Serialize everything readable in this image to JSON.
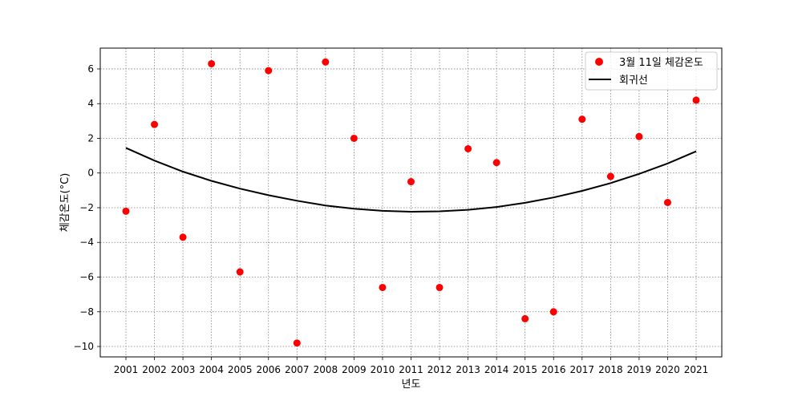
{
  "chart_data": {
    "type": "scatter",
    "xlabel": "년도",
    "ylabel": "체감온도(°C)",
    "x": [
      2001,
      2002,
      2003,
      2004,
      2005,
      2006,
      2007,
      2008,
      2009,
      2010,
      2011,
      2012,
      2013,
      2014,
      2015,
      2016,
      2017,
      2018,
      2019,
      2020,
      2021
    ],
    "x_tick_labels": [
      "2001",
      "2002",
      "2003",
      "2004",
      "2005",
      "2006",
      "2007",
      "2008",
      "2009",
      "2010",
      "2011",
      "2012",
      "2013",
      "2014",
      "2015",
      "2016",
      "2017",
      "2018",
      "2019",
      "2020",
      "2021"
    ],
    "y_ticks": [
      6,
      4,
      2,
      0,
      -2,
      -4,
      -6,
      -8,
      -10
    ],
    "y_tick_labels": [
      "6",
      "4",
      "2",
      "0",
      "−2",
      "−4",
      "−6",
      "−8",
      "−10"
    ],
    "xlim": [
      2000.1,
      2021.9
    ],
    "ylim": [
      -10.6,
      7.2
    ],
    "grid": true,
    "legend_position": "top-right",
    "series": [
      {
        "name": "3월 11일 체감온도",
        "kind": "scatter",
        "color": "#ff0000",
        "values": [
          -2.2,
          2.8,
          -3.7,
          6.3,
          -5.7,
          5.9,
          -9.8,
          6.4,
          2.0,
          -6.6,
          -0.5,
          -6.6,
          1.4,
          0.6,
          -8.4,
          -8.0,
          3.1,
          -0.2,
          2.1,
          -1.7,
          4.2
        ]
      },
      {
        "name": "회귀선",
        "kind": "line",
        "color": "#000000",
        "values": [
          1.45,
          0.72,
          0.08,
          -0.45,
          -0.9,
          -1.28,
          -1.6,
          -1.87,
          -2.06,
          -2.18,
          -2.23,
          -2.21,
          -2.12,
          -1.96,
          -1.72,
          -1.41,
          -1.03,
          -0.58,
          -0.05,
          0.55,
          1.25
        ]
      }
    ]
  }
}
